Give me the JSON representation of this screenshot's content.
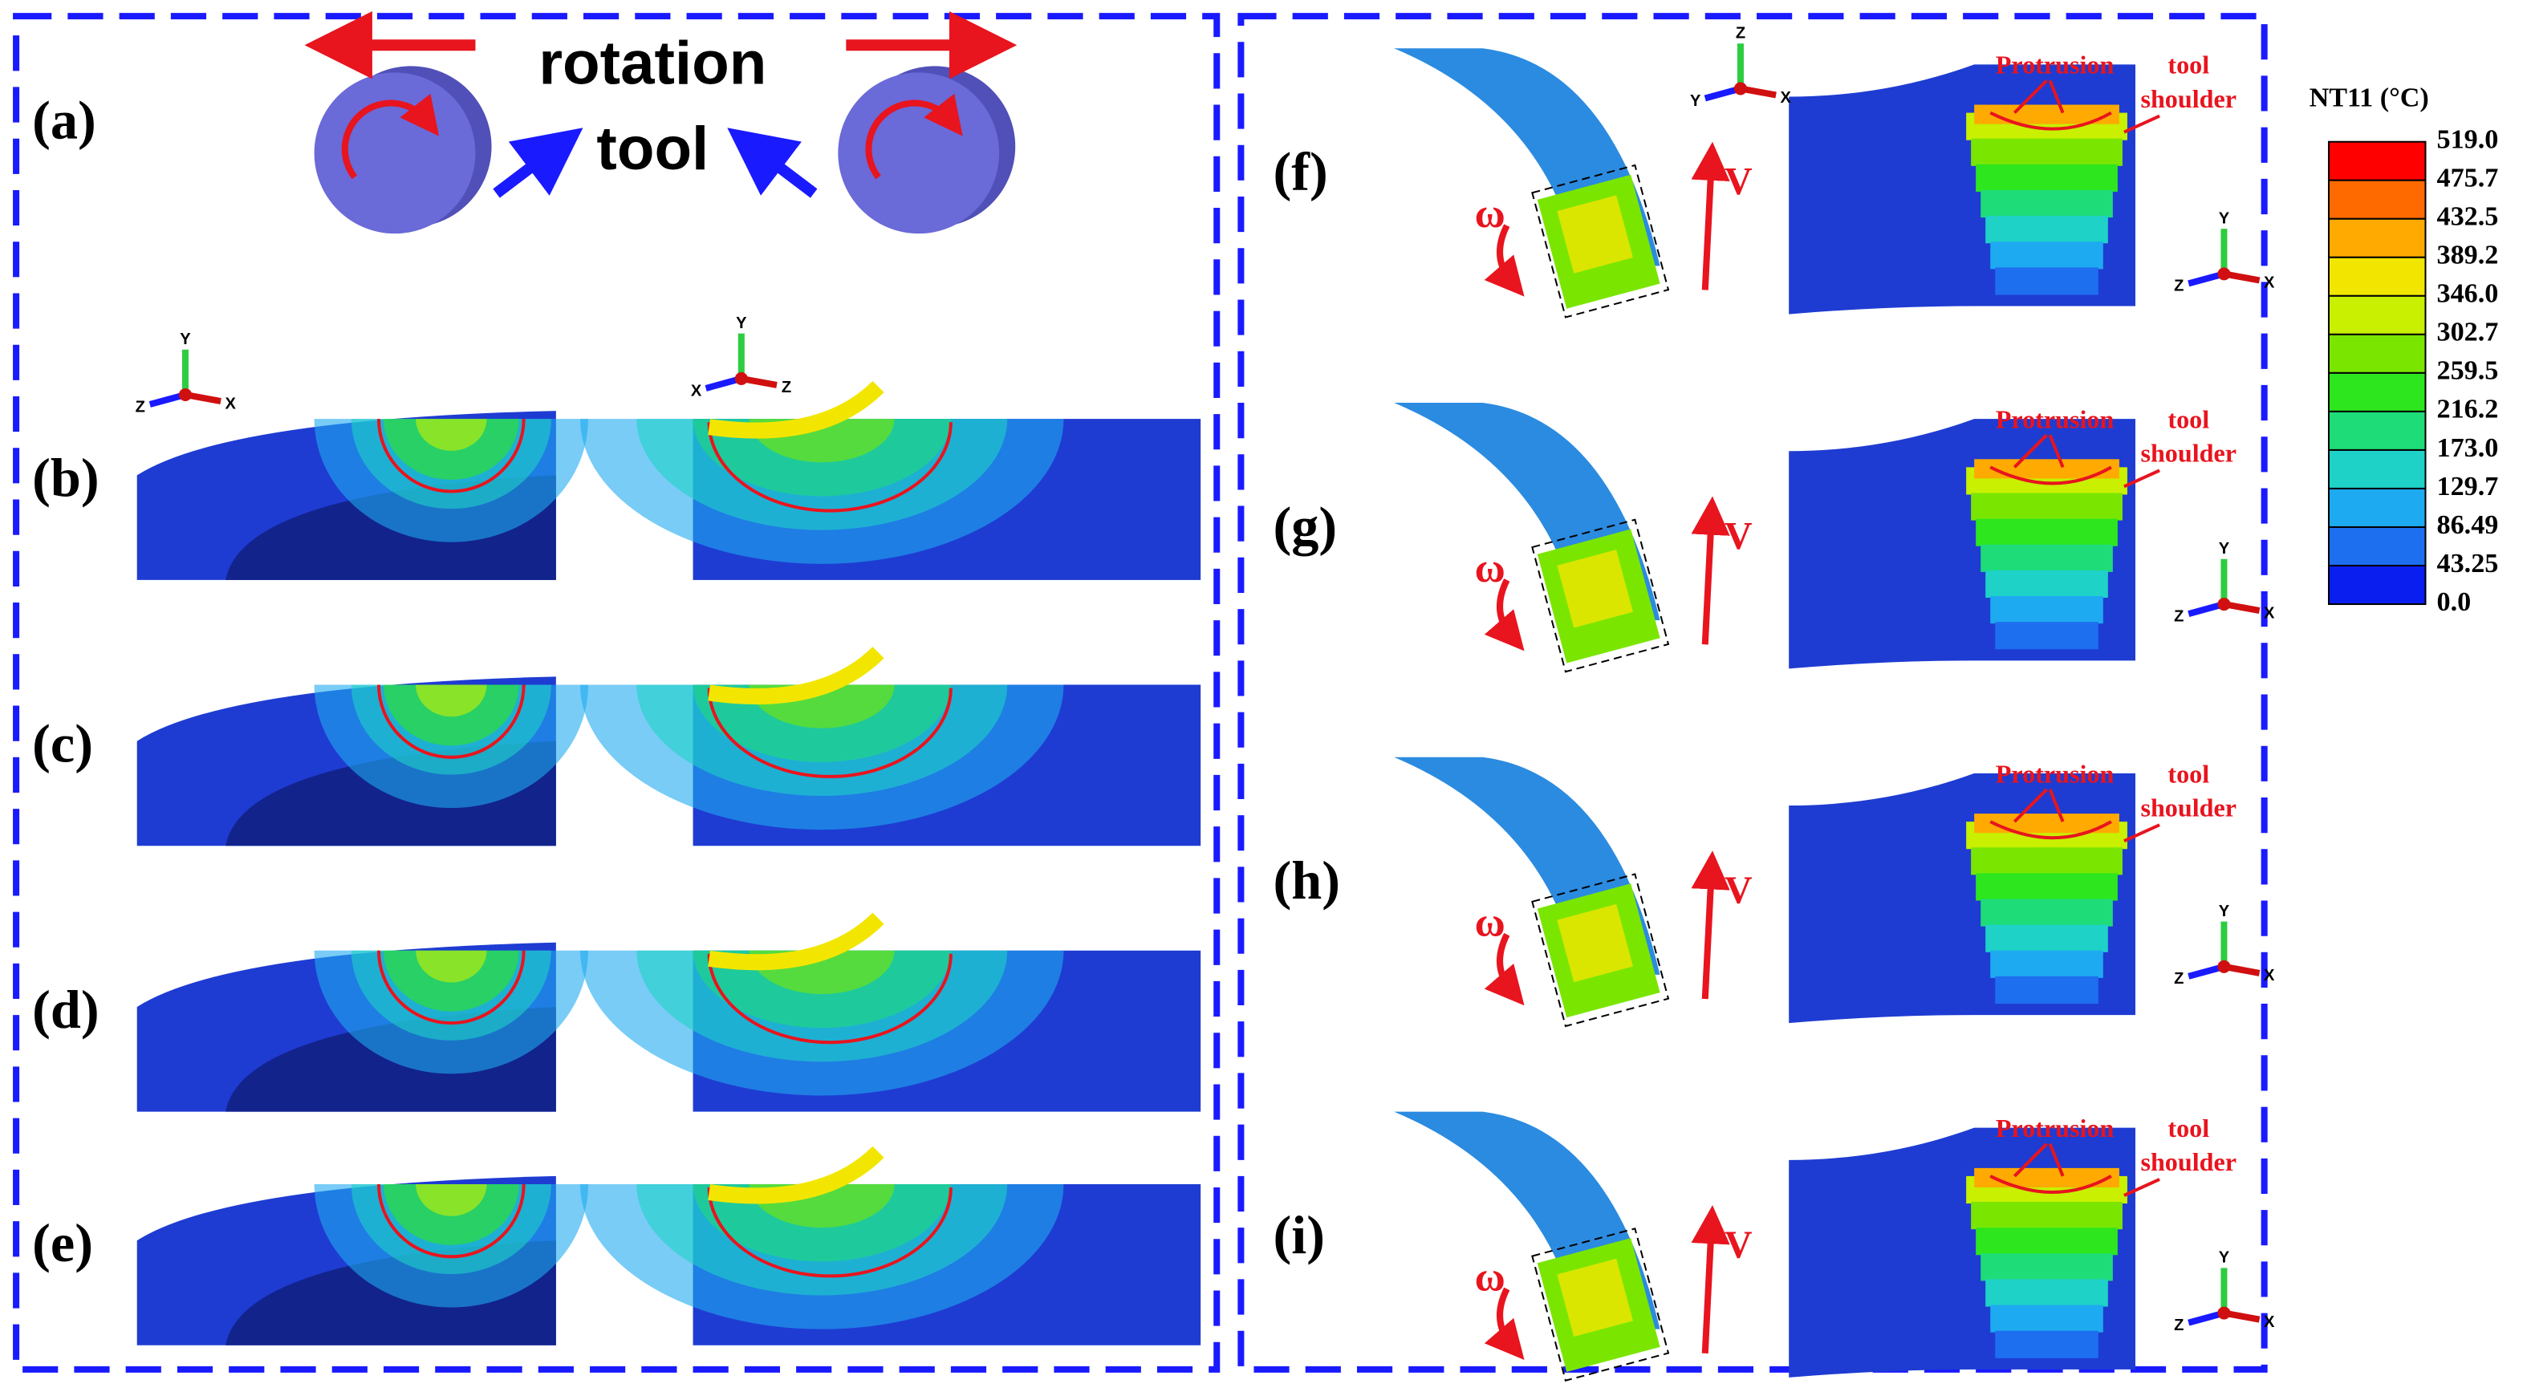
{
  "left_panel": {
    "labels": [
      "(a)",
      "(b)",
      "(c)",
      "(d)",
      "(e)"
    ],
    "rotation": "rotation",
    "tool": "tool"
  },
  "right_panel": {
    "rows": [
      {
        "label": "(f)",
        "omega": "ω",
        "v": "V",
        "protrusion": "Protrusion",
        "tool": "tool",
        "shoulder": "shoulder"
      },
      {
        "label": "(g)",
        "omega": "ω",
        "v": "V",
        "protrusion": "Protrusion",
        "tool": "tool",
        "shoulder": "shoulder"
      },
      {
        "label": "(h)",
        "omega": "ω",
        "v": "V",
        "protrusion": "Protrusion",
        "tool": "tool",
        "shoulder": "shoulder"
      },
      {
        "label": "(i)",
        "omega": "ω",
        "v": "V",
        "protrusion": "Protrusion",
        "tool": "tool",
        "shoulder": "shoulder"
      }
    ]
  },
  "legend": {
    "title": "NT11 (°C)",
    "ticks": [
      "519.0",
      "475.7",
      "432.5",
      "389.2",
      "346.0",
      "302.7",
      "259.5",
      "216.2",
      "173.0",
      "129.7",
      "86.49",
      "43.25",
      "0.0"
    ],
    "colors": [
      "#ff0000",
      "#ff6a00",
      "#ffaa00",
      "#f2e600",
      "#c8f000",
      "#7ae600",
      "#2ee61e",
      "#1edc78",
      "#1ed2c8",
      "#1eaaf0",
      "#1e6ef0",
      "#0a1ef0"
    ]
  },
  "triads": [
    [
      "Y",
      "Z",
      "X"
    ],
    [
      "Y",
      "X",
      "Z"
    ],
    [
      "Z",
      "Y",
      "X"
    ],
    [
      "Y",
      "Z",
      "X"
    ],
    [
      "Y",
      "Z",
      "X"
    ],
    [
      "Y",
      "Z",
      "X"
    ],
    [
      "Y",
      "Z",
      "X"
    ]
  ]
}
